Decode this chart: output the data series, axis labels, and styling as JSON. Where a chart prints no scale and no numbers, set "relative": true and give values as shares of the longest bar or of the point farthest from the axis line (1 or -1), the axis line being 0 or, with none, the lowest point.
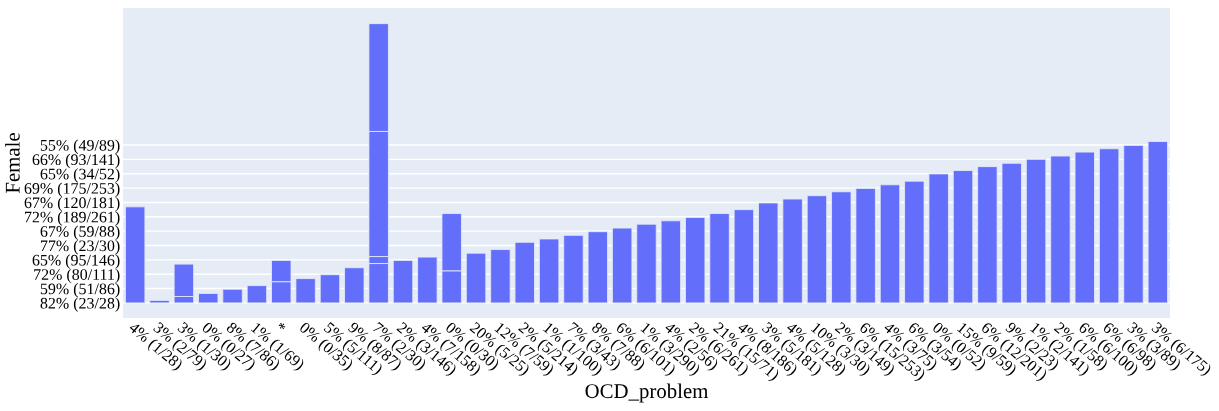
{
  "chart_data": {
    "type": "bar",
    "stacked": true,
    "relative": true,
    "xlabel": "OCD_problem",
    "ylabel": "Female",
    "categories": [
      "4% (1/28)",
      "3% (2/79)",
      "3% (1/30)",
      "0% (0/27)",
      "8% (7/86)",
      "1% (1/69)",
      "*",
      "0% (0/35)",
      "5% (5/111)",
      "9% (8/87)",
      "7% (2/30)",
      "2% (3/146)",
      "4% (7/158)",
      "0% (0/30)",
      "20% (5/25)",
      "12% (7/59)",
      "2% (5/214)",
      "1% (1/100)",
      "7% (3/43)",
      "8% (7/88)",
      "6% (6/101)",
      "1% (3/290)",
      "4% (2/56)",
      "2% (6/261)",
      "21% (15/71)",
      "4% (8/186)",
      "3% (5/181)",
      "4% (5/128)",
      "10% (3/30)",
      "2% (3/149)",
      "6% (15/253)",
      "4% (3/75)",
      "6% (3/54)",
      "0% (0/52)",
      "15% (9/59)",
      "6% (12/201)",
      "9% (2/23)",
      "1% (2/141)",
      "2% (1/58)",
      "6% (6/100)",
      "6% (6/98)",
      "3% (3/89)",
      "3% (6/175)"
    ],
    "series": [
      {
        "color": "#636efa",
        "values": [
          0.344,
          0.009,
          0.023,
          0.034,
          0.049,
          0.062,
          0.076,
          0.087,
          0.101,
          0.126,
          0.141,
          0.152,
          0.164,
          0.115,
          0.178,
          0.191,
          0.217,
          0.229,
          0.242,
          0.255,
          0.268,
          0.282,
          0.294,
          0.306,
          0.32,
          0.334,
          0.358,
          0.372,
          0.384,
          0.398,
          0.41,
          0.423,
          0.436,
          0.462,
          0.474,
          0.488,
          0.5,
          0.514,
          0.526,
          0.54,
          0.552,
          0.564,
          0.578
        ]
      },
      {
        "color": "#636efa",
        "values": [
          null,
          null,
          0.116,
          null,
          null,
          null,
          0.076,
          null,
          null,
          null,
          0.025,
          null,
          null,
          0.205,
          null,
          null,
          null,
          null,
          null,
          null,
          null,
          null,
          null,
          null,
          null,
          null,
          null,
          null,
          null,
          null,
          null,
          null,
          null,
          null,
          null,
          null,
          null,
          null,
          null,
          null,
          null,
          null,
          null
        ]
      },
      {
        "color": "#636efa",
        "values": [
          null,
          null,
          null,
          null,
          null,
          null,
          null,
          null,
          null,
          null,
          0.448,
          null,
          null,
          null,
          null,
          null,
          null,
          null,
          null,
          null,
          null,
          null,
          null,
          null,
          null,
          null,
          null,
          null,
          null,
          null,
          null,
          null,
          null,
          null,
          null,
          null,
          null,
          null,
          null,
          null,
          null,
          null,
          null
        ]
      },
      {
        "color": "#636efa",
        "values": [
          null,
          null,
          null,
          null,
          null,
          null,
          null,
          null,
          null,
          null,
          0.386,
          null,
          null,
          null,
          null,
          null,
          null,
          null,
          null,
          null,
          null,
          null,
          null,
          null,
          null,
          null,
          null,
          null,
          null,
          null,
          null,
          null,
          null,
          null,
          null,
          null,
          null,
          null,
          null,
          null,
          null,
          null,
          null
        ]
      }
    ],
    "annotations": [
      "82% (23/28)",
      "59% (51/86)",
      "72% (80/111)",
      "65% (95/146)",
      "77% (23/30)",
      "67% (59/88)",
      "72% (189/261)",
      "67% (120/181)",
      "69% (175/253)",
      "65% (34/52)",
      "66% (93/141)",
      "55% (49/89)"
    ],
    "grid": "y"
  }
}
